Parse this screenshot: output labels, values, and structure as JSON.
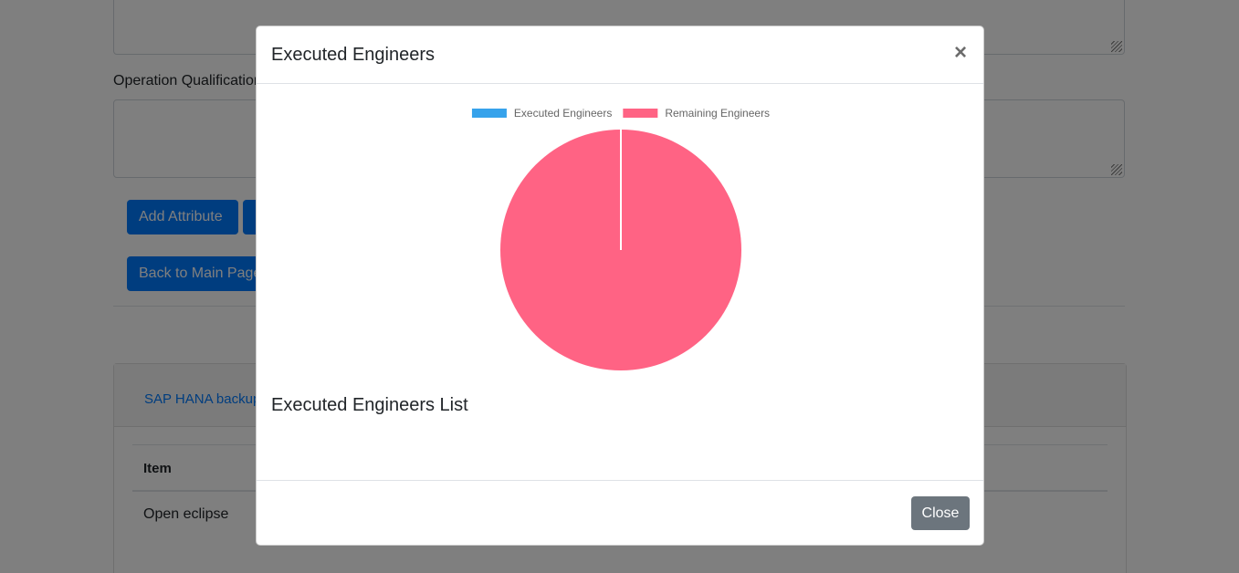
{
  "background": {
    "qualification_label": "Operation Qualification",
    "add_attribute_label": "Add Attribute",
    "back_to_main_label": "Back to Main Page",
    "card_link_text": "SAP HANA backup",
    "table_header_item": "Item",
    "table_row_item": "Open eclipse"
  },
  "modal": {
    "title": "Executed Engineers",
    "close_symbol": "×",
    "list_title": "Executed Engineers List",
    "close_button_label": "Close"
  },
  "chart_data": {
    "type": "pie",
    "categories": [
      "Executed Engineers",
      "Remaining Engineers"
    ],
    "values": [
      0,
      1
    ],
    "colors": [
      "#36a2eb",
      "#ff6384"
    ],
    "legend_position": "top"
  }
}
